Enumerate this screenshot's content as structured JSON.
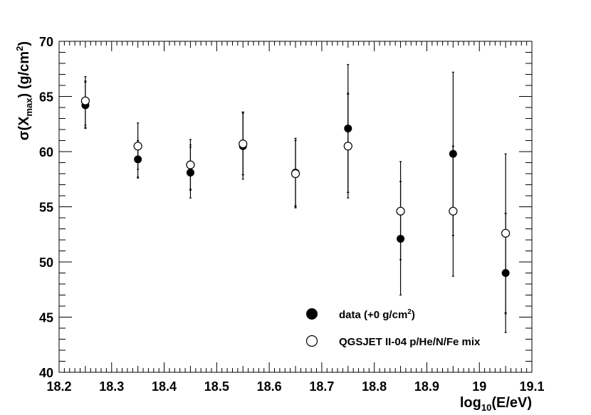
{
  "chart_data": {
    "type": "scatter",
    "title": "",
    "xlabel": {
      "base": "log",
      "sub": "10",
      "rest": "(E/eV)"
    },
    "ylabel": {
      "pre": "σ(X",
      "sub": "max",
      "mid": ") (g/cm",
      "sup": "2",
      "post": ")"
    },
    "xlim": [
      18.2,
      19.1
    ],
    "ylim": [
      40,
      70
    ],
    "xticks": [
      "18.2",
      "18.3",
      "18.4",
      "18.5",
      "18.6",
      "18.7",
      "18.8",
      "18.9",
      "19",
      "19.1"
    ],
    "yticks": [
      "40",
      "45",
      "50",
      "55",
      "60",
      "65",
      "70"
    ],
    "grid": false,
    "legend_position": "bottom-right",
    "series": [
      {
        "name": "data (+0 g/cm",
        "name_sup": "2",
        "name_post": ")",
        "marker": "filled-circle",
        "points": [
          {
            "x": 18.25,
            "y": 64.2,
            "err_lo": 62.1,
            "err_hi": 66.3,
            "sys_lo": 62.2,
            "sys_hi": 66.4
          },
          {
            "x": 18.35,
            "y": 59.3,
            "err_lo": 57.6,
            "err_hi": 61.0,
            "sys_lo": 57.7,
            "sys_hi": 61.0
          },
          {
            "x": 18.45,
            "y": 58.1,
            "err_lo": 55.8,
            "err_hi": 60.4,
            "sys_lo": 56.5,
            "sys_hi": 60.6
          },
          {
            "x": 18.55,
            "y": 60.5,
            "err_lo": 57.5,
            "err_hi": 63.5,
            "sys_lo": 57.9,
            "sys_hi": 63.5
          },
          {
            "x": 18.65,
            "y": 58.1,
            "err_lo": 54.9,
            "err_hi": 61.2,
            "sys_lo": 55.1,
            "sys_hi": 61.0
          },
          {
            "x": 18.75,
            "y": 62.1,
            "err_lo": 56.3,
            "err_hi": 67.9,
            "sys_lo": 56.3,
            "sys_hi": 65.3
          },
          {
            "x": 18.85,
            "y": 52.1,
            "err_lo": 47.0,
            "err_hi": 57.3,
            "sys_lo": 50.2,
            "sys_hi": 57.3
          },
          {
            "x": 18.95,
            "y": 59.8,
            "err_lo": 52.4,
            "err_hi": 67.2,
            "sys_lo": 52.4,
            "sys_hi": 60.5
          },
          {
            "x": 19.05,
            "y": 49.0,
            "err_lo": 43.6,
            "err_hi": 54.4,
            "sys_lo": 45.3,
            "sys_hi": 54.4
          }
        ]
      },
      {
        "name": "QGSJET II-04 p/He/N/Fe mix",
        "marker": "open-circle",
        "points": [
          {
            "x": 18.25,
            "y": 64.6,
            "err_lo": 62.4,
            "err_hi": 66.8
          },
          {
            "x": 18.35,
            "y": 60.5,
            "err_lo": 58.4,
            "err_hi": 62.6
          },
          {
            "x": 18.45,
            "y": 58.8,
            "err_lo": 56.6,
            "err_hi": 61.1
          },
          {
            "x": 18.55,
            "y": 60.7,
            "err_lo": 57.9,
            "err_hi": 63.6
          },
          {
            "x": 18.65,
            "y": 58.0,
            "err_lo": 55.0,
            "err_hi": 61.2
          },
          {
            "x": 18.75,
            "y": 60.5,
            "err_lo": 55.8,
            "err_hi": 65.2
          },
          {
            "x": 18.85,
            "y": 54.6,
            "err_lo": 50.2,
            "err_hi": 59.1
          },
          {
            "x": 18.95,
            "y": 54.6,
            "err_lo": 48.7,
            "err_hi": 60.5
          },
          {
            "x": 19.05,
            "y": 52.6,
            "err_lo": 45.4,
            "err_hi": 59.8
          }
        ]
      }
    ]
  }
}
